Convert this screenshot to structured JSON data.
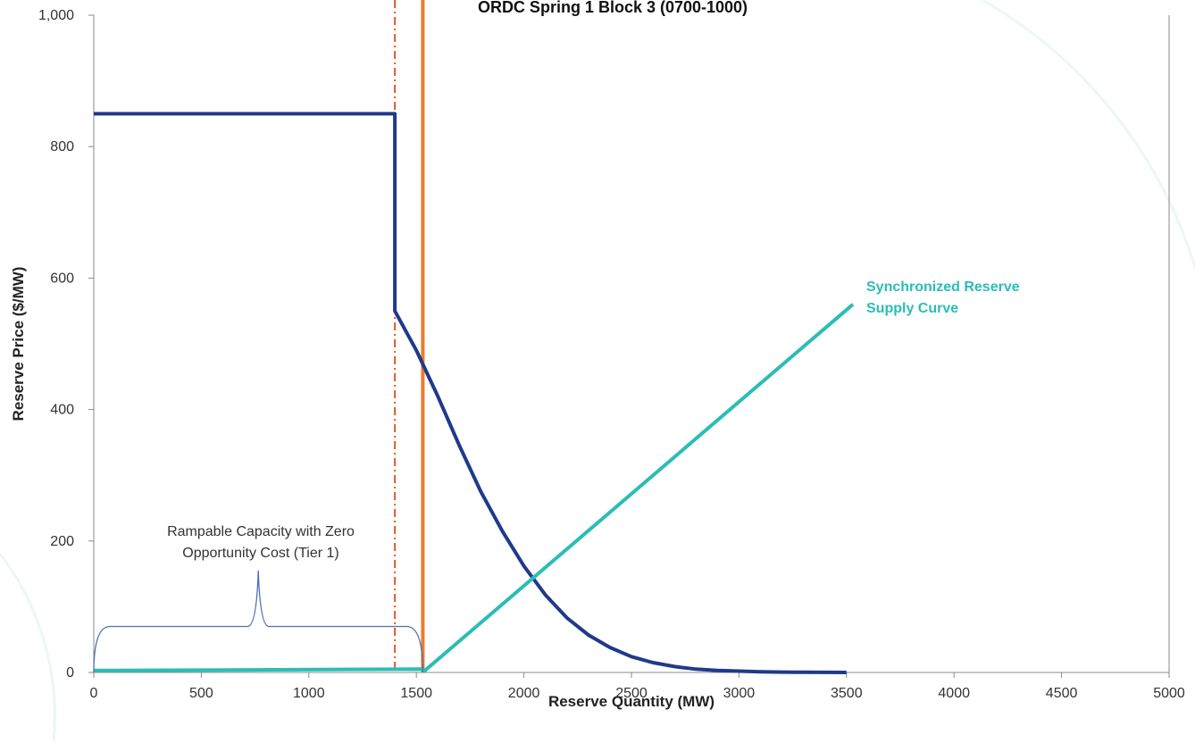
{
  "chart_data": {
    "type": "line",
    "title": "ORDC Spring 1 Block 3 (0700-1000)",
    "xlabel": "Reserve Quantity (MW)",
    "ylabel": "Reserve Price ($/MW)",
    "xlim": [
      0,
      5000
    ],
    "ylim": [
      0,
      1000
    ],
    "x_ticks": [
      "0",
      "500",
      "1000",
      "1500",
      "2000",
      "2500",
      "3000",
      "3500",
      "4000",
      "4500",
      "5000"
    ],
    "y_ticks": [
      "0",
      "200",
      "400",
      "600",
      "800",
      "1,000"
    ],
    "grid": false,
    "series": [
      {
        "color": "#1f3a8a",
        "x": [
          0,
          1400,
          1400,
          1500,
          1600,
          1700,
          1800,
          1900,
          2000,
          2100,
          2200,
          2300,
          2400,
          2500,
          2600,
          2700,
          2800,
          2900,
          3000,
          3100,
          3200,
          3300,
          3400,
          3500
        ],
        "y": [
          850,
          850,
          550,
          490,
          420,
          345,
          275,
          215,
          162,
          118,
          83,
          57,
          38,
          24,
          15,
          9,
          5,
          3,
          2,
          1,
          0.5,
          0.3,
          0.2,
          0
        ]
      },
      {
        "name": "Synchronized Reserve Supply Curve",
        "color": "#2bbdb6",
        "x": [
          0,
          1530,
          1540,
          3530
        ],
        "y": [
          3,
          5,
          3,
          560
        ]
      }
    ],
    "vertical_lines": [
      {
        "x": 1400,
        "color": "#e8562c",
        "style": "dashed"
      },
      {
        "x": 1530,
        "color": "#ec7c2c",
        "style": "solid"
      }
    ],
    "series_label": {
      "line1": "Synchronized Reserve",
      "line2": "Supply Curve"
    },
    "annotation": {
      "line1": "Rampable Capacity with Zero",
      "line2": "Opportunity Cost (Tier 1)",
      "x_start": 0,
      "x_end": 1530,
      "y_value": 70,
      "tip_value": 155
    }
  }
}
